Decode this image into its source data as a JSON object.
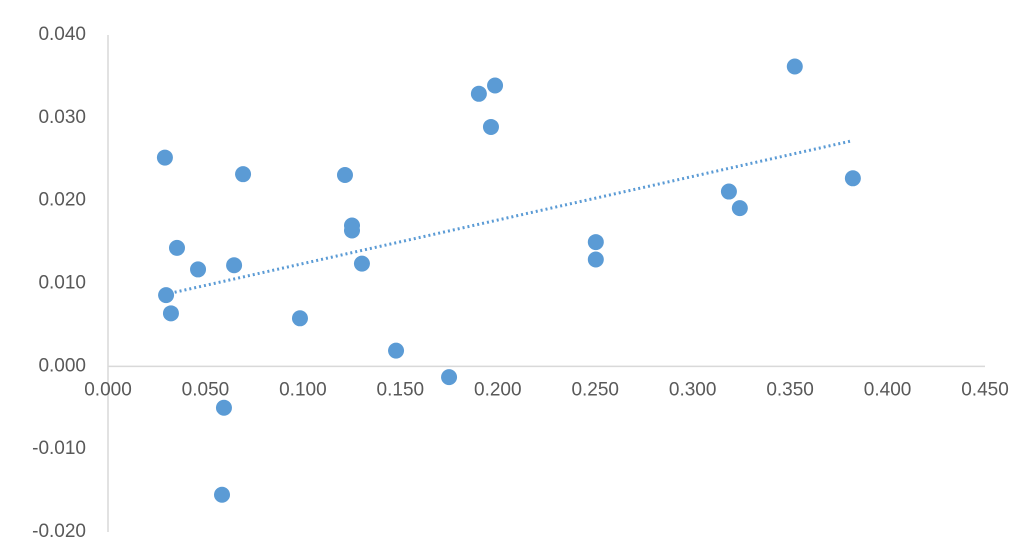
{
  "chart_data": {
    "type": "scatter",
    "color": "#5b9bd5",
    "trendline": "linear",
    "x": [
      0.0292,
      0.0298,
      0.0323,
      0.0354,
      0.0462,
      0.0647,
      0.0693,
      0.0595,
      0.0585,
      0.0985,
      0.1216,
      0.1252,
      0.1252,
      0.1303,
      0.1478,
      0.175,
      0.1903,
      0.1986,
      0.1965,
      0.2503,
      0.2503,
      0.3186,
      0.3242,
      0.3524,
      0.3822
    ],
    "values": [
      0.0252,
      0.0086,
      0.0064,
      0.0143,
      0.0117,
      0.0122,
      0.0232,
      -0.005,
      -0.0155,
      0.0058,
      0.0231,
      0.017,
      0.0164,
      0.0124,
      0.0019,
      -0.0013,
      0.0329,
      0.0339,
      0.0289,
      0.015,
      0.0129,
      0.0211,
      0.0191,
      0.0362,
      0.0227
    ],
    "xlim": [
      0,
      0.45
    ],
    "ylim": [
      -0.02,
      0.04
    ],
    "xticks": [
      {
        "value": 0,
        "label": "0.000"
      },
      {
        "value": 0.05,
        "label": "0.050"
      },
      {
        "value": 0.1,
        "label": "0.100"
      },
      {
        "value": 0.15,
        "label": "0.150"
      },
      {
        "value": 0.2,
        "label": "0.200"
      },
      {
        "value": 0.25,
        "label": "0.250"
      },
      {
        "value": 0.3,
        "label": "0.300"
      },
      {
        "value": 0.35,
        "label": "0.350"
      },
      {
        "value": 0.4,
        "label": "0.400"
      },
      {
        "value": 0.45,
        "label": "0.450"
      }
    ],
    "yticks": [
      {
        "value": 0.04,
        "label": "0.040"
      },
      {
        "value": 0.03,
        "label": "0.030"
      },
      {
        "value": 0.02,
        "label": "0.020"
      },
      {
        "value": 0.01,
        "label": "0.010"
      },
      {
        "value": 0,
        "label": "0.000"
      },
      {
        "value": -0.01,
        "label": "-0.010"
      },
      {
        "value": -0.02,
        "label": "-0.020"
      }
    ]
  }
}
